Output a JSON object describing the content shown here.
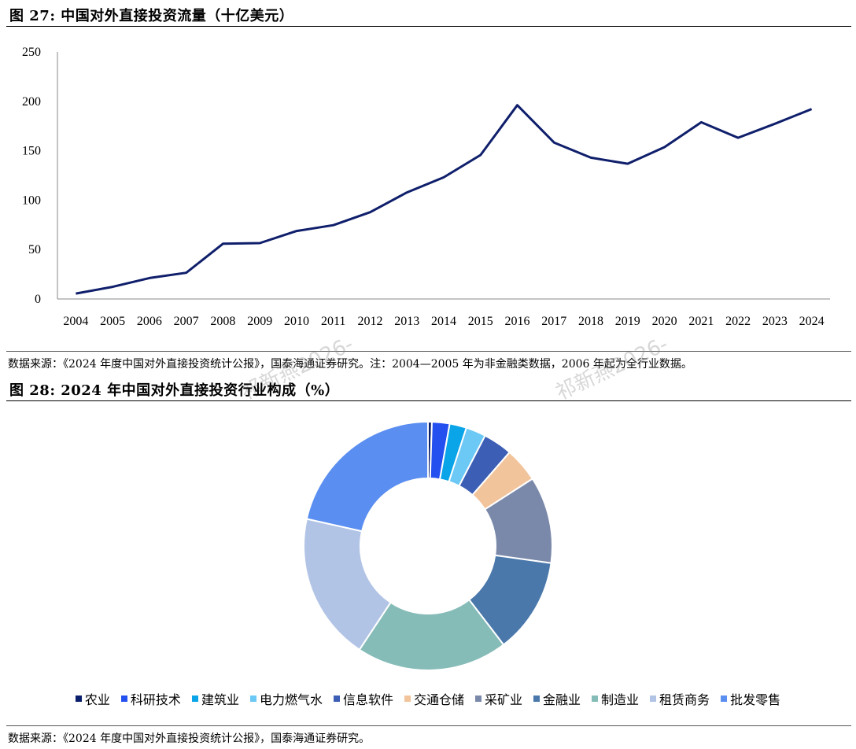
{
  "figure27": {
    "title": "图 27:  中国对外直接投资流量（十亿美元）",
    "source": "数据来源：《2024 年度中国对外直接投资统计公报》，国泰海通证券研究。注：2004—2005 年为非金融类数据，2006 年起为全行业数据。"
  },
  "figure28": {
    "title": "图 28:  2024 年中国对外直接投资行业构成（%）",
    "source": "数据来源：《2024 年度中国对外直接投资统计公报》，国泰海通证券研究。"
  },
  "watermark": "祁新燕2026-",
  "chart_data": [
    {
      "type": "line",
      "title": "中国对外直接投资流量（十亿美元）",
      "x": [
        "2004",
        "2005",
        "2006",
        "2007",
        "2008",
        "2009",
        "2010",
        "2011",
        "2012",
        "2013",
        "2014",
        "2015",
        "2016",
        "2017",
        "2018",
        "2019",
        "2020",
        "2021",
        "2022",
        "2023",
        "2024"
      ],
      "series": [
        {
          "values": [
            5.5,
            12.3,
            21.2,
            26.5,
            55.9,
            56.5,
            68.8,
            74.7,
            87.8,
            107.8,
            123.1,
            145.7,
            196.1,
            158.3,
            143.0,
            136.9,
            153.7,
            178.8,
            163.1,
            177.3,
            192.2
          ],
          "color": "#0f1f6b"
        }
      ],
      "yticks": [
        0,
        50,
        100,
        150,
        200,
        250
      ],
      "ylim": [
        0,
        250
      ],
      "grid": false
    },
    {
      "type": "pie",
      "title": "2024 年中国对外直接投资行业构成（%）",
      "donut": true,
      "legend_position": "bottom",
      "slices": [
        {
          "label": "农业",
          "value": 0.5,
          "color": "#0a1f6b"
        },
        {
          "label": "科研技术",
          "value": 2.3,
          "color": "#2450f0"
        },
        {
          "label": "建筑业",
          "value": 2.2,
          "color": "#0aa4e8"
        },
        {
          "label": "电力燃气水",
          "value": 2.6,
          "color": "#6cc8f4"
        },
        {
          "label": "信息软件",
          "value": 3.8,
          "color": "#3c5eb4"
        },
        {
          "label": "交通仓储",
          "value": 4.5,
          "color": "#f2c49c"
        },
        {
          "label": "采矿业",
          "value": 11.3,
          "color": "#7a89aa"
        },
        {
          "label": "金融业",
          "value": 12.4,
          "color": "#4a78aa"
        },
        {
          "label": "制造业",
          "value": 19.7,
          "color": "#86bcb8"
        },
        {
          "label": "租赁商务",
          "value": 19.2,
          "color": "#b2c4e6"
        },
        {
          "label": "批发零售",
          "value": 21.5,
          "color": "#5a8ef0"
        }
      ]
    }
  ]
}
